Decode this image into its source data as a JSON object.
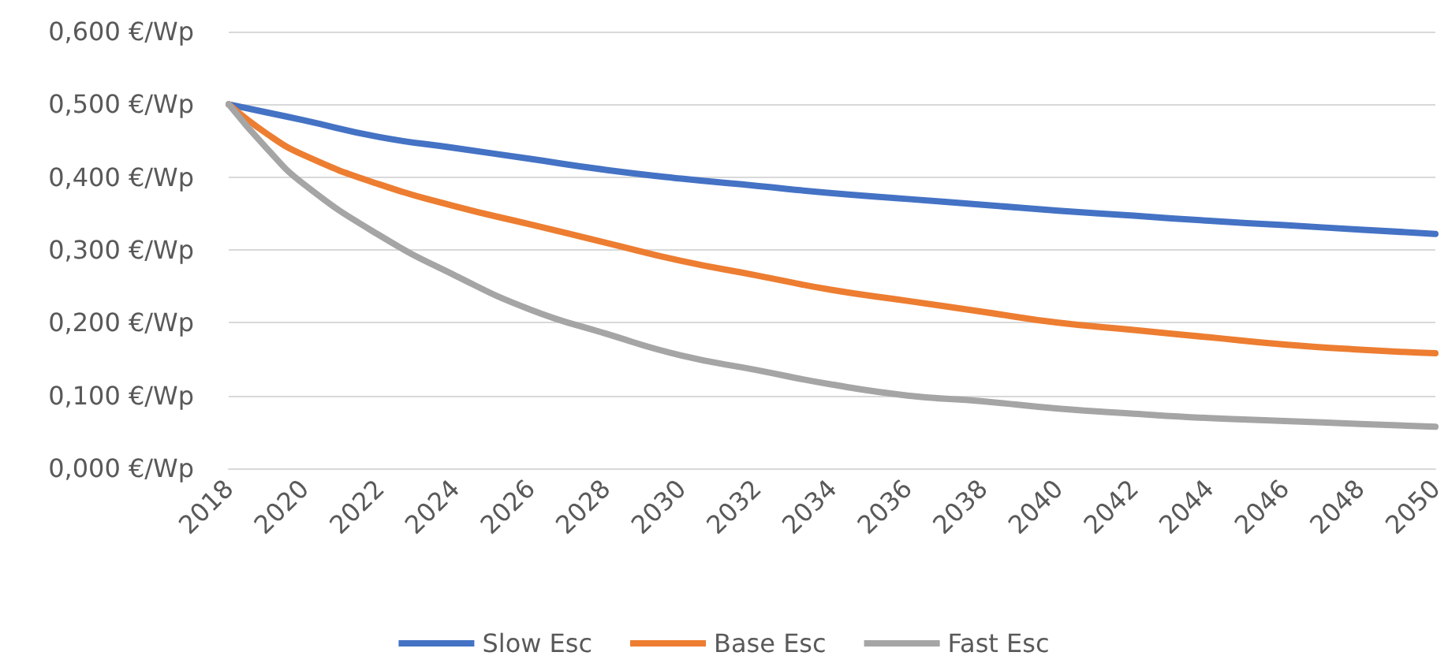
{
  "chart_data": {
    "type": "line",
    "x": [
      2018,
      2019,
      2020,
      2022,
      2024,
      2026,
      2028,
      2030,
      2032,
      2034,
      2036,
      2038,
      2040,
      2042,
      2044,
      2046,
      2048,
      2050
    ],
    "series": [
      {
        "name": "Slow Esc",
        "color": "#4472c4",
        "values": [
          0.5,
          0.489,
          0.478,
          0.455,
          0.44,
          0.425,
          0.41,
          0.398,
          0.388,
          0.378,
          0.37,
          0.362,
          0.354,
          0.347,
          0.34,
          0.334,
          0.328,
          0.322
        ]
      },
      {
        "name": "Base Esc",
        "color": "#ed7d31",
        "values": [
          0.5,
          0.46,
          0.43,
          0.39,
          0.36,
          0.335,
          0.31,
          0.285,
          0.265,
          0.245,
          0.23,
          0.215,
          0.2,
          0.19,
          0.18,
          0.17,
          0.163,
          0.158
        ]
      },
      {
        "name": "Fast Esc",
        "color": "#a5a5a5",
        "values": [
          0.5,
          0.44,
          0.39,
          0.32,
          0.265,
          0.218,
          0.185,
          0.155,
          0.135,
          0.115,
          0.1,
          0.092,
          0.082,
          0.075,
          0.069,
          0.065,
          0.061,
          0.057
        ]
      }
    ],
    "xlim": [
      2018,
      2050
    ],
    "xticks": [
      2018,
      2020,
      2022,
      2024,
      2026,
      2028,
      2030,
      2032,
      2034,
      2036,
      2038,
      2040,
      2042,
      2044,
      2046,
      2048,
      2050
    ],
    "ylim": [
      0,
      0.6
    ],
    "yticks": [
      {
        "value": 0,
        "label": "0,000 €/Wp"
      },
      {
        "value": 0.1,
        "label": "0,100 €/Wp"
      },
      {
        "value": 0.2,
        "label": "0,200 €/Wp"
      },
      {
        "value": 0.3,
        "label": "0,300 €/Wp"
      },
      {
        "value": 0.4,
        "label": "0,400 €/Wp"
      },
      {
        "value": 0.5,
        "label": "0,500 €/Wp"
      },
      {
        "value": 0.6,
        "label": "0,600 €/Wp"
      }
    ],
    "grid": "y",
    "legend": "bottom",
    "marker": "none",
    "line_style": "solid"
  }
}
